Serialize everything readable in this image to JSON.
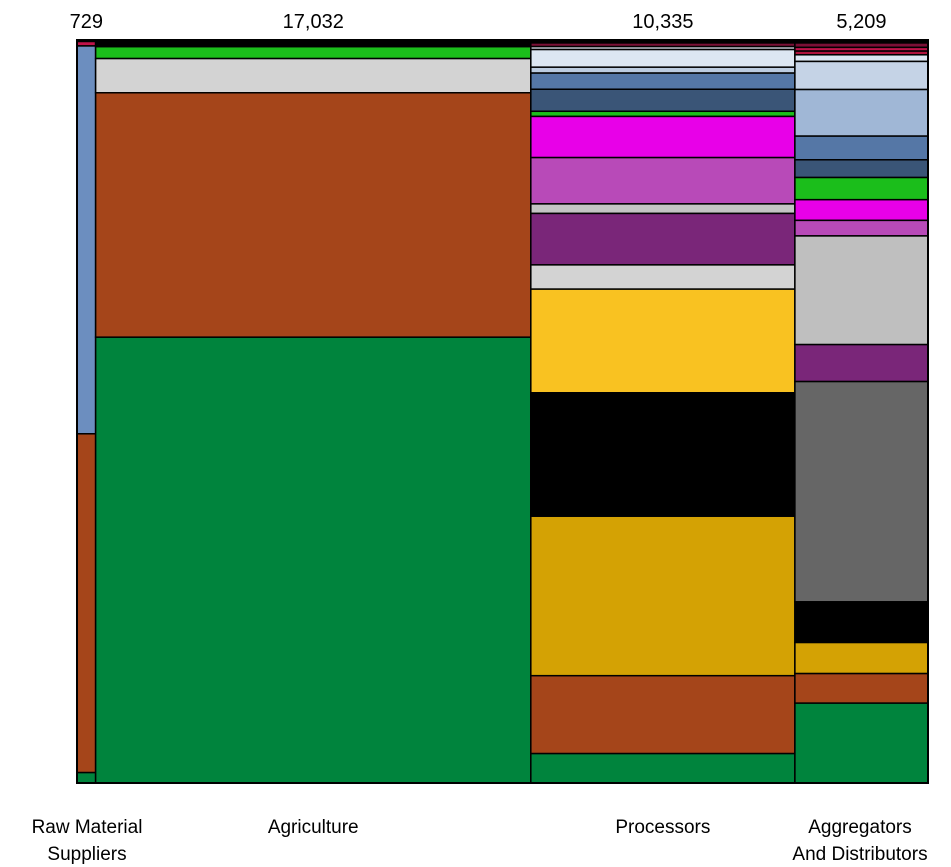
{
  "chart_data": {
    "type": "mekko",
    "title": "",
    "columns": [
      {
        "category": "Raw Material Suppliers",
        "label_lines": [
          "Raw Material",
          "Suppliers"
        ],
        "total": 729,
        "total_label": "729",
        "segments": [
          {
            "share": 0.002,
            "color": "#1F1F1F"
          },
          {
            "share": 0.006,
            "color": "#C0134A"
          },
          {
            "share": 0.522,
            "color": "#6C8EBF"
          },
          {
            "share": 0.456,
            "color": "#A5451A"
          },
          {
            "share": 0.014,
            "color": "#00843D"
          }
        ]
      },
      {
        "category": "Agriculture",
        "label_lines": [
          "Agriculture"
        ],
        "total": 17032,
        "total_label": "17,032",
        "segments": [
          {
            "share": 0.009,
            "color": "#000000"
          },
          {
            "share": 0.016,
            "color": "#1BBE1B"
          },
          {
            "share": 0.046,
            "color": "#D3D3D3"
          },
          {
            "share": 0.329,
            "color": "#A5451A"
          },
          {
            "share": 0.6,
            "color": "#00843D"
          }
        ]
      },
      {
        "category": "Processors",
        "label_lines": [
          "Processors"
        ],
        "total": 10335,
        "total_label": "10,335",
        "segments": [
          {
            "share": 0.004,
            "color": "#000000"
          },
          {
            "share": 0.005,
            "color": "#7A1036"
          },
          {
            "share": 0.004,
            "color": "#D8DCE8"
          },
          {
            "share": 0.024,
            "color": "#DCE6F2"
          },
          {
            "share": 0.008,
            "color": "#BCCCE0"
          },
          {
            "share": 0.022,
            "color": "#5577A6"
          },
          {
            "share": 0.03,
            "color": "#3A5577"
          },
          {
            "share": 0.007,
            "color": "#1BBE1B"
          },
          {
            "share": 0.056,
            "color": "#E800E8"
          },
          {
            "share": 0.063,
            "color": "#B84AB8"
          },
          {
            "share": 0.013,
            "color": "#C4C4C4"
          },
          {
            "share": 0.07,
            "color": "#7A2679"
          },
          {
            "share": 0.033,
            "color": "#D3D3D3"
          },
          {
            "share": 0.141,
            "color": "#F9C221"
          },
          {
            "share": 0.168,
            "color": "#000000"
          },
          {
            "share": 0.217,
            "color": "#D4A204"
          },
          {
            "share": 0.106,
            "color": "#A5451A"
          },
          {
            "share": 0.04,
            "color": "#00843D"
          }
        ]
      },
      {
        "category": "Aggregators And Distributors",
        "label_lines": [
          "Aggregators",
          "And Distributors"
        ],
        "total": 5209,
        "total_label": "5,209",
        "segments": [
          {
            "share": 0.004,
            "color": "#000000"
          },
          {
            "share": 0.006,
            "color": "#7A1036"
          },
          {
            "share": 0.005,
            "color": "#C0134A"
          },
          {
            "share": 0.005,
            "color": "#B0133D"
          },
          {
            "share": 0.009,
            "color": "#DCE6F2"
          },
          {
            "share": 0.038,
            "color": "#C5D3E6"
          },
          {
            "share": 0.063,
            "color": "#A0B7D6"
          },
          {
            "share": 0.032,
            "color": "#5577A6"
          },
          {
            "share": 0.024,
            "color": "#3A5577"
          },
          {
            "share": 0.03,
            "color": "#1BBE1B"
          },
          {
            "share": 0.028,
            "color": "#E800E8"
          },
          {
            "share": 0.021,
            "color": "#B84AB8"
          },
          {
            "share": 0.147,
            "color": "#BFBFBF"
          },
          {
            "share": 0.05,
            "color": "#7A2679"
          },
          {
            "share": 0.298,
            "color": "#666666"
          },
          {
            "share": 0.055,
            "color": "#000000"
          },
          {
            "share": 0.042,
            "color": "#D4A204"
          },
          {
            "share": 0.04,
            "color": "#A5451A"
          },
          {
            "share": 0.108,
            "color": "#00843D"
          }
        ]
      }
    ],
    "xlabel": "",
    "ylabel": "",
    "legend": "none",
    "grid": false
  }
}
